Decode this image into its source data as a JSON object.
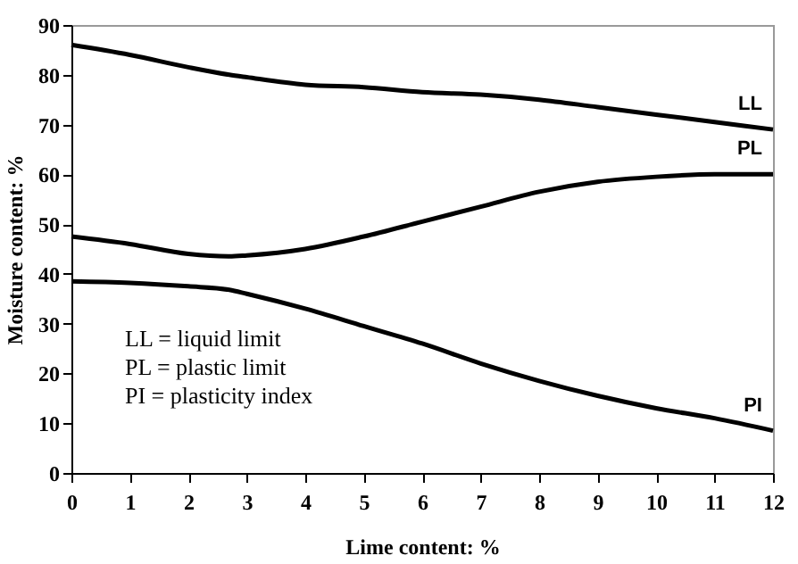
{
  "chart_data": {
    "type": "line",
    "xlabel": "Lime content: %",
    "ylabel": "Moisture content: %",
    "x": [
      0,
      1,
      2,
      2.7,
      3,
      4,
      5,
      6,
      7,
      8,
      9,
      10,
      11,
      12
    ],
    "series": [
      {
        "name": "LL",
        "color": "#000000",
        "values": [
          86,
          84,
          81.5,
          80,
          79.5,
          78,
          77.5,
          76.5,
          76,
          75,
          73.5,
          72,
          70.5,
          69
        ]
      },
      {
        "name": "PL",
        "color": "#000000",
        "values": [
          47.5,
          46,
          44,
          43.5,
          43.7,
          45,
          47.5,
          50.5,
          53.5,
          56.5,
          58.5,
          59.5,
          60,
          60
        ]
      },
      {
        "name": "PI",
        "color": "#000000",
        "values": [
          38.5,
          38.2,
          37.5,
          36.8,
          36,
          33,
          29.5,
          26,
          22,
          18.5,
          15.5,
          13,
          11,
          8.5
        ]
      }
    ],
    "xlim": [
      0,
      12
    ],
    "xticks": [
      0,
      1,
      2,
      3,
      4,
      5,
      6,
      7,
      8,
      9,
      10,
      11,
      12
    ],
    "ylim": [
      0,
      90
    ],
    "yticks": [
      0,
      10,
      20,
      30,
      40,
      50,
      60,
      70,
      80,
      90
    ],
    "grid": false,
    "legend": false,
    "marker": "none",
    "line_style": "solid",
    "annotations": [
      "LL = liquid limit",
      "PL = plastic limit",
      "PI = plasticity index"
    ]
  }
}
